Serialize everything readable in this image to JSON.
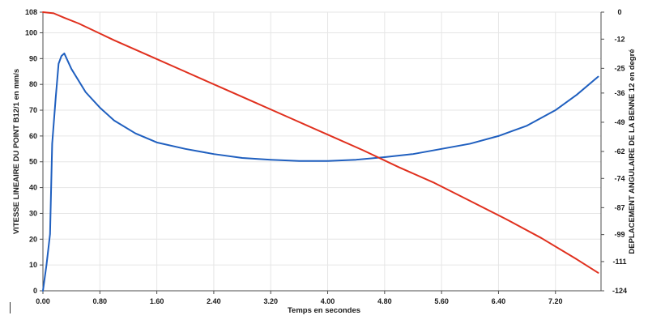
{
  "chart_data": {
    "type": "line",
    "title": "",
    "xlabel": "Temps en secondes",
    "ylabel_left": "VITESSE LINEAIRE DU POINT B12/1 en mm/s",
    "ylabel_right": "DEPLACEMENT ANGULAIRE DE LA BENNE 12 en degré",
    "xlim": [
      0,
      7.84
    ],
    "ylim_left": [
      0,
      108
    ],
    "ylim_right": [
      -124,
      0
    ],
    "grid": true,
    "x_ticks": [
      "0.00",
      "0.80",
      "1.60",
      "2.40",
      "3.20",
      "4.00",
      "4.80",
      "5.60",
      "6.40",
      "7.20"
    ],
    "x_tick_values": [
      0,
      0.8,
      1.6,
      2.4,
      3.2,
      4.0,
      4.8,
      5.6,
      6.4,
      7.2
    ],
    "y_left_ticks": [
      "0",
      "10",
      "20",
      "30",
      "40",
      "50",
      "60",
      "70",
      "80",
      "90",
      "100",
      "108"
    ],
    "y_left_tick_values": [
      0,
      10,
      20,
      30,
      40,
      50,
      60,
      70,
      80,
      90,
      100,
      108
    ],
    "y_right_ticks": [
      "0",
      "-12",
      "-25",
      "-36",
      "-49",
      "-62",
      "-74",
      "-87",
      "-99",
      "-111",
      "-124"
    ],
    "y_right_tick_values": [
      0,
      -12,
      -25,
      -36,
      -49,
      -62,
      -74,
      -87,
      -99,
      -111,
      -124
    ],
    "series": [
      {
        "axis": "left",
        "color": "#1f5fbf",
        "x": [
          0.0,
          0.05,
          0.1,
          0.13,
          0.18,
          0.22,
          0.26,
          0.3,
          0.4,
          0.6,
          0.8,
          1.0,
          1.3,
          1.6,
          2.0,
          2.4,
          2.8,
          3.2,
          3.6,
          4.0,
          4.4,
          4.8,
          5.2,
          5.6,
          6.0,
          6.4,
          6.8,
          7.2,
          7.5,
          7.8
        ],
        "values": [
          0,
          10,
          22,
          57,
          75,
          88,
          91,
          92,
          86,
          77,
          71,
          66,
          61,
          57.5,
          55,
          53,
          51.5,
          50.8,
          50.3,
          50.3,
          50.8,
          51.8,
          53,
          55,
          57,
          60,
          64,
          70,
          76,
          83
        ]
      },
      {
        "axis": "right",
        "color": "#e0301e",
        "x": [
          0.0,
          0.15,
          0.3,
          0.5,
          1.0,
          1.5,
          2.0,
          2.5,
          3.0,
          3.5,
          4.0,
          4.5,
          5.0,
          5.5,
          6.0,
          6.5,
          7.0,
          7.5,
          7.8
        ],
        "values": [
          0,
          -0.5,
          -2.5,
          -5,
          -12.5,
          -19.5,
          -26.5,
          -33.5,
          -40.5,
          -47.5,
          -54.5,
          -61.5,
          -69,
          -76,
          -84,
          -92,
          -100.5,
          -110,
          -116
        ]
      }
    ]
  }
}
